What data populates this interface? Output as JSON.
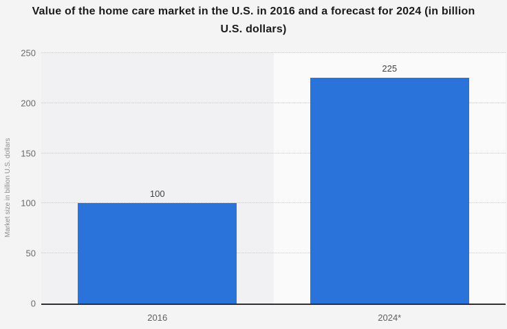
{
  "chart_data": {
    "type": "bar",
    "title": "Value of the home care market in the U.S. in 2016 and a forecast for 2024 (in billion U.S. dollars)",
    "categories": [
      "2016",
      "2024*"
    ],
    "values": [
      100,
      225
    ],
    "value_labels": [
      "100",
      "225"
    ],
    "xlabel": "",
    "ylabel": "Market size in billion U.S. dollars",
    "ylim": [
      0,
      250
    ],
    "yticks": [
      0,
      50,
      100,
      150,
      200,
      250
    ],
    "grid": "horizontal-dotted",
    "legend": "none",
    "bar_color": "#2a73db",
    "band_colors": [
      "#f1f1f3",
      "#fafafa"
    ],
    "axis_line_color": "#2e2e2e",
    "background_color": "#f4f4f5"
  }
}
